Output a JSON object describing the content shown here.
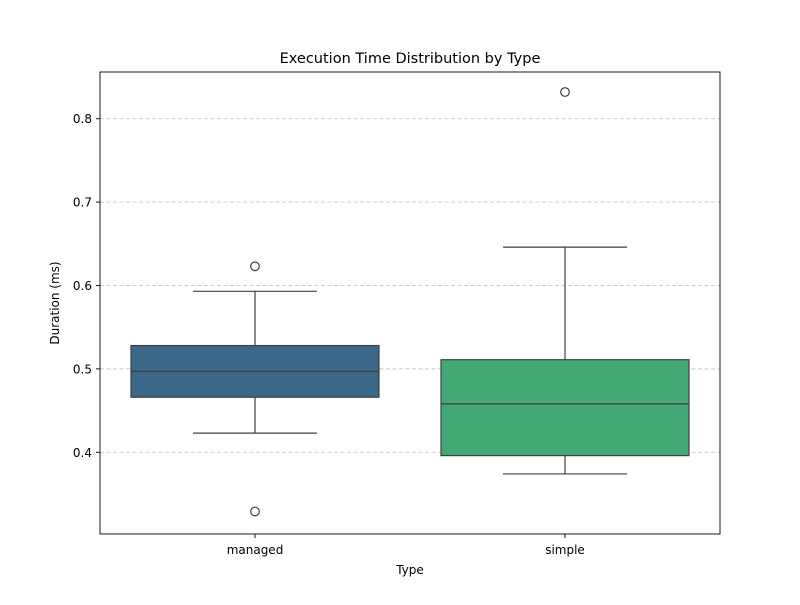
{
  "chart_data": {
    "type": "box",
    "title": "Execution Time Distribution by Type",
    "xlabel": "Type",
    "ylabel": "Duration (ms)",
    "ylim": [
      0.302,
      0.856
    ],
    "yticks": [
      0.4,
      0.5,
      0.6,
      0.7,
      0.8
    ],
    "ytick_labels": [
      "0.4",
      "0.5",
      "0.6",
      "0.7",
      "0.8"
    ],
    "grid": "y-dashed",
    "categories": [
      "managed",
      "simple"
    ],
    "series": [
      {
        "category": "managed",
        "color": "#3b6788",
        "whisker_low": 0.423,
        "q1": 0.466,
        "median": 0.497,
        "q3": 0.528,
        "whisker_high": 0.593,
        "outliers": [
          0.623,
          0.329
        ]
      },
      {
        "category": "simple",
        "color": "#42a876",
        "whisker_low": 0.374,
        "q1": 0.396,
        "median": 0.458,
        "q3": 0.511,
        "whisker_high": 0.646,
        "outliers": [
          0.832
        ]
      }
    ]
  }
}
